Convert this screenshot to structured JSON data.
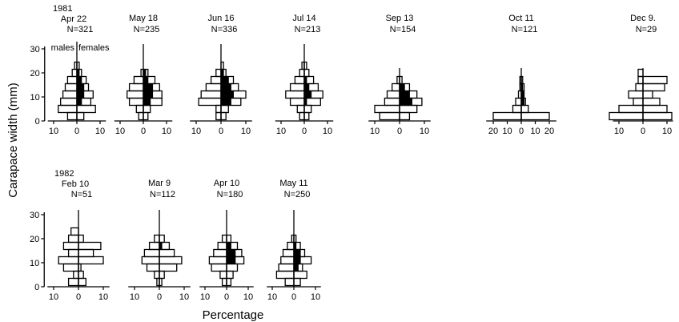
{
  "figure": {
    "ylabel": "Carapace width (mm)",
    "xlabel": "Percentage",
    "legend": {
      "left": "males",
      "right": "females"
    }
  },
  "chart_data": [
    {
      "type": "bar",
      "year": "1981",
      "date": "Apr 22",
      "n_label": "N=321",
      "n": 321,
      "y_ticks": [
        0,
        10,
        20,
        30
      ],
      "x_ticks": [
        "10",
        "0",
        "10"
      ],
      "bins_mm": [
        2,
        5,
        8,
        11,
        14,
        17,
        20,
        23,
        26,
        29
      ],
      "males": [
        4,
        8,
        7,
        6,
        5,
        4,
        2,
        1,
        0,
        0
      ],
      "females": [
        3,
        8,
        6,
        7,
        5,
        4,
        2,
        1,
        0,
        0
      ],
      "females_berried": [
        0,
        0,
        2,
        3,
        3,
        2,
        1,
        0,
        0,
        0
      ]
    },
    {
      "type": "bar",
      "date": "May 18",
      "n_label": "N=235",
      "n": 235,
      "y_ticks": [
        0,
        10,
        20,
        30
      ],
      "x_ticks": [
        "10",
        "0",
        "10"
      ],
      "bins_mm": [
        2,
        5,
        8,
        11,
        14,
        17,
        20,
        23,
        26,
        29
      ],
      "males": [
        2,
        3,
        6,
        7,
        6,
        4,
        1,
        0,
        0,
        0
      ],
      "females": [
        2,
        3,
        8,
        8,
        7,
        5,
        2,
        0,
        0,
        0
      ],
      "females_berried": [
        0,
        0,
        3,
        4,
        4,
        2,
        1,
        0,
        0,
        0
      ]
    },
    {
      "type": "bar",
      "date": "Jun 16",
      "n_label": "N=336",
      "n": 336,
      "y_ticks": [
        0,
        10,
        20,
        30
      ],
      "x_ticks": [
        "10",
        "0",
        "10"
      ],
      "bins_mm": [
        2,
        5,
        8,
        11,
        14,
        17,
        20,
        23,
        26,
        29
      ],
      "males": [
        2,
        2,
        9,
        8,
        6,
        4,
        2,
        0,
        0,
        0
      ],
      "females": [
        2,
        3,
        8,
        10,
        7,
        5,
        2,
        1,
        0,
        0
      ],
      "females_berried": [
        0,
        0,
        4,
        5,
        4,
        3,
        1,
        0,
        0,
        0
      ]
    },
    {
      "type": "bar",
      "date": "Jul 14",
      "n_label": "N=213",
      "n": 213,
      "y_ticks": [
        0,
        10,
        20,
        30
      ],
      "x_ticks": [
        "10",
        "0",
        "10"
      ],
      "bins_mm": [
        2,
        5,
        8,
        11,
        14,
        17,
        20,
        23,
        26,
        29
      ],
      "males": [
        2,
        3,
        6,
        8,
        6,
        4,
        2,
        1,
        0,
        0
      ],
      "females": [
        2,
        3,
        7,
        8,
        6,
        4,
        2,
        1,
        0,
        0
      ],
      "females_berried": [
        0,
        0,
        1,
        3,
        2,
        1,
        0,
        0,
        0,
        0
      ]
    },
    {
      "type": "bar",
      "date": "Sep 13",
      "n_label": "N=154",
      "n": 154,
      "y_ticks": [
        0,
        10,
        20
      ],
      "x_ticks": [
        "10",
        "0",
        "10"
      ],
      "bins_mm": [
        2,
        5,
        8,
        11,
        14,
        17,
        20
      ],
      "males": [
        8,
        10,
        6,
        5,
        3,
        1,
        0
      ],
      "females": [
        4,
        7,
        9,
        7,
        4,
        1,
        0
      ],
      "females_berried": [
        0,
        0,
        5,
        4,
        2,
        0,
        0
      ]
    },
    {
      "type": "bar",
      "date": "Oct 11",
      "n_label": "N=121",
      "n": 121,
      "y_ticks": [
        0,
        10,
        20
      ],
      "x_ticks": [
        "20",
        "10",
        "0",
        "10",
        "20"
      ],
      "bins_mm": [
        2,
        5,
        8,
        11,
        14,
        17,
        20
      ],
      "males": [
        20,
        6,
        4,
        2,
        1,
        1,
        0
      ],
      "females": [
        20,
        5,
        3,
        2,
        2,
        1,
        0
      ],
      "females_berried": [
        0,
        0,
        2,
        2,
        1,
        0,
        0
      ]
    },
    {
      "type": "bar",
      "date": "Dec 9.",
      "n_label": "N=29",
      "n": 29,
      "y_ticks": [
        0,
        10,
        20
      ],
      "x_ticks": [
        "10",
        "0",
        "10"
      ],
      "bins_mm": [
        2,
        5,
        8,
        11,
        14,
        17,
        20
      ],
      "males": [
        14,
        10,
        4,
        6,
        3,
        2,
        2
      ],
      "females": [
        12,
        10,
        7,
        4,
        9,
        10,
        0
      ],
      "females_berried": [
        0,
        0,
        0,
        0,
        0,
        0,
        0
      ]
    },
    {
      "type": "bar",
      "year": "1982",
      "date": "Feb 10",
      "n_label": "N=51",
      "n": 51,
      "y_ticks": [
        0,
        10,
        20,
        30
      ],
      "x_ticks": [
        "10",
        "0",
        "10"
      ],
      "bins_mm": [
        2,
        5,
        8,
        11,
        14,
        17,
        20,
        23,
        26
      ],
      "males": [
        4,
        2,
        6,
        8,
        4,
        6,
        4,
        3,
        0
      ],
      "females": [
        3,
        2,
        1,
        10,
        6,
        9,
        2,
        0,
        0
      ],
      "females_berried": [
        0,
        0,
        0,
        0,
        0,
        0,
        0,
        0,
        0
      ]
    },
    {
      "type": "bar",
      "date": "Mar 9",
      "n_label": "N=112",
      "n": 112,
      "y_ticks": [
        0,
        10,
        20,
        30
      ],
      "x_ticks": [
        "10",
        "0",
        "10"
      ],
      "bins_mm": [
        2,
        5,
        8,
        11,
        14,
        17,
        20,
        23,
        26
      ],
      "males": [
        1,
        2,
        5,
        7,
        6,
        4,
        2,
        0,
        0
      ],
      "females": [
        1,
        2,
        7,
        9,
        6,
        4,
        2,
        0,
        0
      ],
      "females_berried": [
        0,
        0,
        0,
        0,
        0,
        1,
        0,
        0,
        0
      ]
    },
    {
      "type": "bar",
      "date": "Apr 10",
      "n_label": "N=180",
      "n": 180,
      "y_ticks": [
        0,
        10,
        20,
        30
      ],
      "x_ticks": [
        "10",
        "0",
        "10"
      ],
      "bins_mm": [
        2,
        5,
        8,
        11,
        14,
        17,
        20,
        23,
        26,
        29
      ],
      "males": [
        2,
        3,
        7,
        8,
        6,
        4,
        2,
        0,
        0,
        0
      ],
      "females": [
        2,
        3,
        5,
        8,
        7,
        5,
        2,
        0,
        0,
        0
      ],
      "females_berried": [
        0,
        0,
        0,
        4,
        4,
        2,
        0,
        0,
        0,
        0
      ]
    },
    {
      "type": "bar",
      "date": "May 11",
      "n_label": "N=250",
      "n": 250,
      "y_ticks": [
        0,
        10,
        20,
        30
      ],
      "x_ticks": [
        "10",
        "0",
        "10"
      ],
      "bins_mm": [
        2,
        5,
        8,
        11,
        14,
        17,
        20,
        23,
        26
      ],
      "males": [
        4,
        8,
        7,
        6,
        5,
        3,
        1,
        0,
        0
      ],
      "females": [
        3,
        6,
        4,
        8,
        5,
        3,
        1,
        0,
        0
      ],
      "females_berried": [
        0,
        0,
        2,
        3,
        3,
        1,
        0,
        0,
        0
      ]
    }
  ]
}
